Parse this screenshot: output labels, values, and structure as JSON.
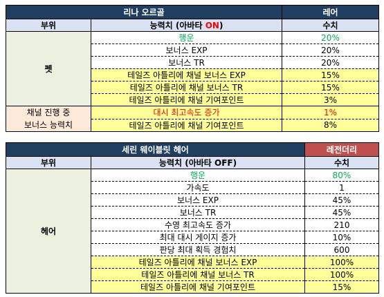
{
  "table1": {
    "title": "리나 오르골",
    "grade": "레어",
    "header_part": "부위",
    "header_stat_prefix": "능력치 (아바타 ",
    "header_stat_on": "ON",
    "header_stat_suffix": ")",
    "header_value": "수치",
    "group_pet": "펫",
    "group_channel_line1": "채널 진행 중",
    "group_channel_line2": "보너스 능력치",
    "rows": [
      {
        "stat": "행운",
        "value": "20%"
      },
      {
        "stat": "보너스 EXP",
        "value": "20%"
      },
      {
        "stat": "보너스 TR",
        "value": "20%"
      },
      {
        "stat": "테일즈 아틀리에 채널 보너스 EXP",
        "value": "15%"
      },
      {
        "stat": "테일즈 아틀리에 채널 보너스 TR",
        "value": "15%"
      },
      {
        "stat": "테일즈 아틀리에 채널 기여포인트",
        "value": "3%"
      },
      {
        "stat": "대시 최고속도 증가",
        "value": "1%"
      },
      {
        "stat": "테일즈 아틀리에 채널 기여포인트",
        "value": "8%"
      }
    ]
  },
  "table2": {
    "title": "세린 웨이블릿 헤어",
    "grade": "레전더리",
    "header_part": "부위",
    "header_stat": "능력치 (아바타 OFF)",
    "header_value": "수치",
    "group_hair": "헤어",
    "rows": [
      {
        "stat": "행운",
        "value": "80%"
      },
      {
        "stat": "가속도",
        "value": "1"
      },
      {
        "stat": "보너스 EXP",
        "value": "45%"
      },
      {
        "stat": "보너스 TR",
        "value": "45%"
      },
      {
        "stat": "수영 최고속도 증가",
        "value": "210"
      },
      {
        "stat": "최대 대시 게이지 증가",
        "value": "10%"
      },
      {
        "stat": "판당 최대 획득 경험치",
        "value": "600"
      },
      {
        "stat": "테일즈 아틀리에 채널 보너스 EXP",
        "value": "100%"
      },
      {
        "stat": "테일즈 아틀리에 채널 보너스 TR",
        "value": "100%"
      },
      {
        "stat": "테일즈 아틀리에 채널 기여포인트",
        "value": "15%"
      }
    ]
  },
  "colors": {
    "title_bg": "#1f3e60",
    "rare_bg": "#1f3e60",
    "legendary_bg": "#c0504d",
    "subheader_bg": "#d9e1f2",
    "category_bg": "#ebf1de",
    "channel_bg": "#fde9d9",
    "highlight_bg": "#ffff99",
    "luck_text": "#00b050",
    "on_text": "#ff0000"
  }
}
